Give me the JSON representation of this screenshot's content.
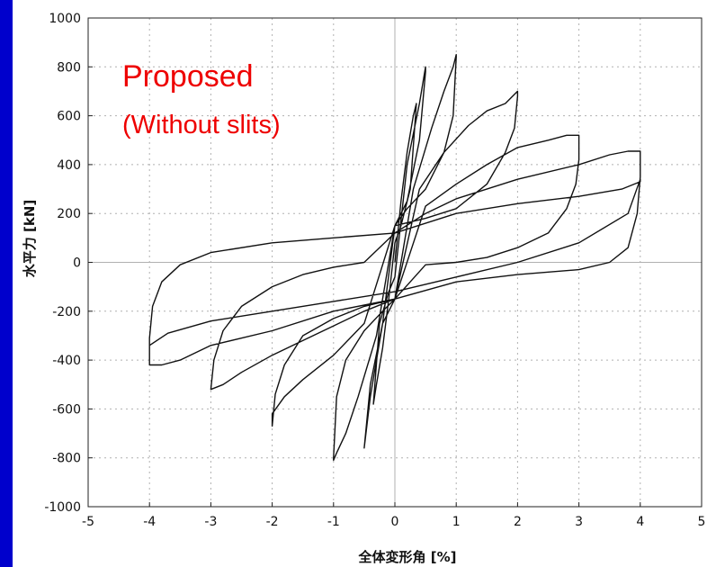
{
  "chart_data": {
    "type": "line",
    "title": "",
    "xlabel": "全体変形角 [%]",
    "ylabel": "水平力 [kN]",
    "xlim": [
      -5,
      5
    ],
    "ylim": [
      -1000,
      1000
    ],
    "x_ticks": [
      "-5",
      "-4",
      "-3",
      "-2",
      "-1",
      "0",
      "1",
      "2",
      "3",
      "4",
      "5"
    ],
    "y_ticks": [
      "-1000",
      "-800",
      "-600",
      "-400",
      "-200",
      "0",
      "200",
      "400",
      "600",
      "800",
      "1000"
    ],
    "grid": true,
    "annotations": [
      "Proposed",
      "(Without slits)"
    ],
    "colors": {
      "curve": "#111111",
      "annotation": "#ee0000",
      "background": "#0000cc",
      "grid": "#b0b0b0"
    },
    "series": [
      {
        "x": [
          0,
          0.1,
          0.2,
          0.3,
          0.35,
          0.25,
          0.1,
          0,
          -0.1,
          -0.2,
          -0.3,
          -0.35,
          -0.25,
          -0.1,
          0,
          0.2,
          0.4,
          0.5,
          0.5,
          0.4,
          0.2,
          0,
          -0.2,
          -0.4,
          -0.5,
          -0.5,
          -0.4,
          -0.2,
          0,
          0.3,
          0.6,
          0.8,
          0.95,
          1.0,
          1.0,
          0.95,
          0.8,
          0.5,
          0.2,
          0,
          -0.3,
          -0.6,
          -0.8,
          -0.95,
          -1.0,
          -1.0,
          -0.95,
          -0.8,
          -0.5,
          -0.2,
          0,
          0.4,
          0.8,
          1.2,
          1.5,
          1.8,
          2.0,
          2.0,
          1.95,
          1.8,
          1.5,
          1.0,
          0.5,
          0,
          -0.5,
          -1.0,
          -1.5,
          -1.8,
          -2.0,
          -2.0,
          -1.95,
          -1.8,
          -1.5,
          -1.0,
          -0.5,
          0,
          0.5,
          1.0,
          1.5,
          2.0,
          2.5,
          2.8,
          3.0,
          3.0,
          2.95,
          2.8,
          2.5,
          2.0,
          1.5,
          1.0,
          0.5,
          0,
          -0.5,
          -1.0,
          -1.5,
          -2.0,
          -2.5,
          -2.8,
          -3.0,
          -3.0,
          -2.95,
          -2.8,
          -2.5,
          -2.0,
          -1.5,
          -1.0,
          -0.5,
          0,
          0.5,
          1.0,
          2.0,
          3.0,
          3.5,
          3.8,
          4.0,
          4.0,
          3.95,
          3.8,
          3.5,
          3.0,
          2.0,
          1.0,
          0,
          -1.0,
          -2.0,
          -3.0,
          -3.5,
          -3.8,
          -4.0,
          -4.0,
          -3.95,
          -3.8,
          -3.5,
          -3.0,
          -2.0,
          -1.0,
          0,
          1.0,
          2.0,
          3.0,
          3.7,
          4.0,
          4.0,
          3.8,
          3.0,
          2.0,
          1.0,
          0,
          -1.0,
          -2.0,
          -3.0,
          -3.7,
          -4.0
        ],
        "y": [
          0,
          250,
          450,
          600,
          650,
          300,
          150,
          80,
          -150,
          -350,
          -500,
          -580,
          -250,
          -120,
          -60,
          400,
          650,
          800,
          780,
          500,
          250,
          150,
          -250,
          -550,
          -760,
          -760,
          -500,
          -250,
          -150,
          300,
          550,
          700,
          800,
          850,
          840,
          600,
          450,
          300,
          220,
          150,
          -300,
          -550,
          -700,
          -780,
          -810,
          -800,
          -550,
          -400,
          -280,
          -200,
          -150,
          300,
          450,
          560,
          620,
          650,
          700,
          680,
          550,
          450,
          320,
          220,
          180,
          150,
          -250,
          -380,
          -480,
          -550,
          -620,
          -670,
          -540,
          -420,
          -300,
          -230,
          -180,
          -150,
          230,
          320,
          400,
          470,
          500,
          520,
          520,
          420,
          320,
          220,
          120,
          60,
          20,
          0,
          -10,
          -150,
          -200,
          -260,
          -320,
          -380,
          -450,
          -500,
          -520,
          -520,
          -400,
          -280,
          -180,
          -100,
          -50,
          -20,
          0,
          120,
          200,
          260,
          340,
          400,
          440,
          455,
          455,
          350,
          200,
          60,
          0,
          -30,
          -50,
          -80,
          -150,
          -200,
          -280,
          -340,
          -400,
          -420,
          -420,
          -310,
          -180,
          -80,
          -10,
          40,
          80,
          100,
          120,
          200,
          240,
          270,
          300,
          330,
          340,
          200,
          80,
          0,
          -60,
          -120,
          -160,
          -200,
          -240,
          -290,
          -340
        ]
      }
    ]
  }
}
